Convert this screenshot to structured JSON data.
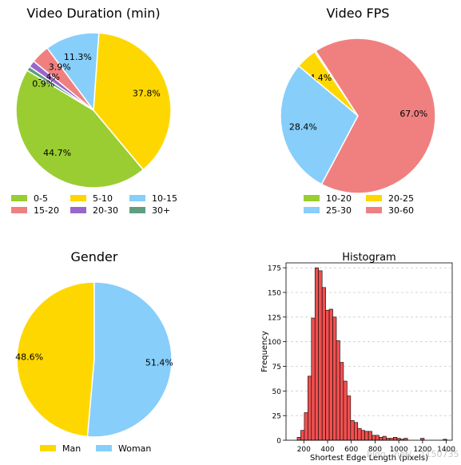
{
  "chart_data": [
    {
      "type": "pie",
      "title": "Video Duration (min)",
      "labels": [
        "0-5",
        "5-10",
        "10-15",
        "15-20",
        "20-30",
        "30+"
      ],
      "values": [
        44.7,
        37.8,
        11.3,
        3.9,
        1.4,
        0.9
      ],
      "pct_labels": [
        "44.7%",
        "37.8%",
        "11.3%",
        "3.9%",
        "1.4%",
        "0.9%"
      ],
      "colors": [
        "#9acd32",
        "#ffd700",
        "#87cefa",
        "#f08080",
        "#9966cc",
        "#5f9f7f"
      ],
      "legend": "below, 3 columns"
    },
    {
      "type": "pie",
      "title": "Video FPS",
      "labels": [
        "10-20",
        "20-25",
        "25-30",
        "30-60"
      ],
      "values": [
        0.3,
        4.4,
        28.4,
        67.0
      ],
      "pct_labels": [
        "0.3%",
        "4.4%",
        "28.4%",
        "67.0%"
      ],
      "colors": [
        "#9acd32",
        "#ffd700",
        "#87cefa",
        "#f08080"
      ],
      "legend": "below, 2 columns"
    },
    {
      "type": "pie",
      "title": "Gender",
      "labels": [
        "Man",
        "Woman"
      ],
      "values": [
        48.6,
        51.4
      ],
      "pct_labels": [
        "48.6%",
        "51.4%"
      ],
      "colors": [
        "#ffd700",
        "#87cefa"
      ],
      "legend": "below, 2 columns"
    },
    {
      "type": "bar",
      "title": "Histogram",
      "xlabel": "Shortest Edge Length (pixels)",
      "ylabel": "Frequency",
      "xlim": [
        50,
        1450
      ],
      "ylim": [
        0,
        180
      ],
      "xticks": [
        200,
        400,
        600,
        800,
        1000,
        1200,
        1400
      ],
      "yticks": [
        0,
        25,
        50,
        75,
        100,
        125,
        150,
        175
      ],
      "grid": "horizontal dashed",
      "color": "#f05050",
      "bins": [
        {
          "start": 144,
          "end": 174,
          "count": 3
        },
        {
          "start": 174,
          "end": 204,
          "count": 10
        },
        {
          "start": 204,
          "end": 234,
          "count": 28
        },
        {
          "start": 234,
          "end": 264,
          "count": 65
        },
        {
          "start": 264,
          "end": 294,
          "count": 124
        },
        {
          "start": 294,
          "end": 324,
          "count": 175
        },
        {
          "start": 324,
          "end": 354,
          "count": 172
        },
        {
          "start": 354,
          "end": 384,
          "count": 155
        },
        {
          "start": 384,
          "end": 414,
          "count": 132
        },
        {
          "start": 414,
          "end": 444,
          "count": 133
        },
        {
          "start": 444,
          "end": 474,
          "count": 125
        },
        {
          "start": 474,
          "end": 504,
          "count": 101
        },
        {
          "start": 504,
          "end": 534,
          "count": 79
        },
        {
          "start": 534,
          "end": 564,
          "count": 60
        },
        {
          "start": 564,
          "end": 594,
          "count": 45
        },
        {
          "start": 594,
          "end": 624,
          "count": 20
        },
        {
          "start": 624,
          "end": 654,
          "count": 18
        },
        {
          "start": 654,
          "end": 684,
          "count": 12
        },
        {
          "start": 684,
          "end": 714,
          "count": 10
        },
        {
          "start": 714,
          "end": 744,
          "count": 9
        },
        {
          "start": 744,
          "end": 774,
          "count": 9
        },
        {
          "start": 774,
          "end": 804,
          "count": 5
        },
        {
          "start": 804,
          "end": 834,
          "count": 5
        },
        {
          "start": 834,
          "end": 864,
          "count": 3
        },
        {
          "start": 864,
          "end": 894,
          "count": 4
        },
        {
          "start": 894,
          "end": 924,
          "count": 2
        },
        {
          "start": 924,
          "end": 954,
          "count": 2
        },
        {
          "start": 954,
          "end": 984,
          "count": 3
        },
        {
          "start": 984,
          "end": 1014,
          "count": 2
        },
        {
          "start": 1014,
          "end": 1044,
          "count": 1
        },
        {
          "start": 1044,
          "end": 1074,
          "count": 2
        },
        {
          "start": 1184,
          "end": 1214,
          "count": 2
        },
        {
          "start": 1374,
          "end": 1404,
          "count": 1
        }
      ]
    }
  ],
  "watermark": "..blog...net/...1150735"
}
